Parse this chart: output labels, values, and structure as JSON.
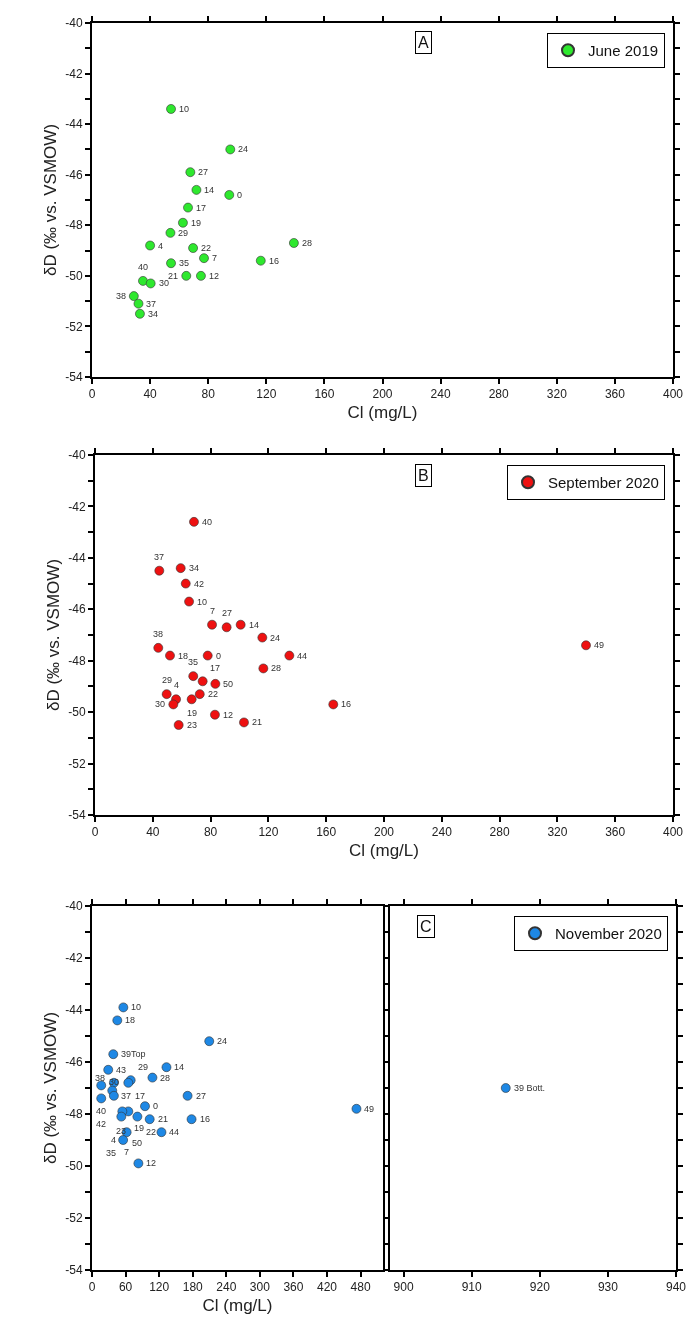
{
  "chart_data": [
    {
      "type": "scatter",
      "xlabel": "Cl (mg/L)",
      "ylabel": "δD (‰ vs. VSMOW)",
      "xlim": [
        0,
        400
      ],
      "ylim": [
        -54,
        -40
      ],
      "xticks": [
        0,
        40,
        80,
        120,
        160,
        200,
        240,
        280,
        320,
        360,
        400
      ],
      "yticks": [
        -40,
        {
          "value": -41,
          "label": null
        },
        -42,
        {
          "value": -43,
          "label": null
        },
        -44,
        {
          "value": -45,
          "label": null
        },
        -46,
        {
          "value": -47,
          "label": null
        },
        -48,
        {
          "value": -49,
          "label": null
        },
        -50,
        {
          "value": -51,
          "label": null
        },
        -52,
        {
          "value": -53,
          "label": null
        },
        -54
      ],
      "legend": "top right",
      "marker": "circle",
      "series": [
        {
          "name": "June 2019",
          "color": "#2ee82e",
          "x": [
            54.4,
            95.2,
            67.7,
            71.9,
            94.5,
            66.1,
            62.6,
            54.0,
            40.0,
            69.6,
            139.0,
            77.1,
            116.2,
            54.4,
            64.9,
            75.0,
            35.1,
            40.4,
            28.8,
            32.0,
            33.0
          ],
          "values": [
            -43.4,
            -45.0,
            -45.9,
            -46.6,
            -46.8,
            -47.3,
            -47.9,
            -48.3,
            -48.8,
            -48.9,
            -48.7,
            -49.3,
            -49.4,
            -49.5,
            -50.0,
            -50.0,
            -50.2,
            -50.3,
            -50.8,
            -51.1,
            -51.5
          ]
        }
      ],
      "annotations": [
        "A",
        {
          "text": "10",
          "x": 54.4,
          "y": -43.4
        },
        {
          "text": "24",
          "x": 95.2,
          "y": -45.0
        },
        {
          "text": "27",
          "x": 67.7,
          "y": -45.9
        },
        {
          "text": "14",
          "x": 71.9,
          "y": -46.6
        },
        {
          "text": "0",
          "x": 94.5,
          "y": -46.8
        },
        {
          "text": "17",
          "x": 66.1,
          "y": -47.3
        },
        {
          "text": "19",
          "x": 62.6,
          "y": -47.9
        },
        {
          "text": "29",
          "x": 54.0,
          "y": -48.3
        },
        {
          "text": "4",
          "x": 40.0,
          "y": -48.8
        },
        {
          "text": "22",
          "x": 69.6,
          "y": -48.9
        },
        {
          "text": "28",
          "x": 139.0,
          "y": -48.7
        },
        {
          "text": "7",
          "x": 77.1,
          "y": -49.3
        },
        {
          "text": "16",
          "x": 116.2,
          "y": -49.4
        },
        {
          "text": "35",
          "x": 54.4,
          "y": -49.5
        },
        {
          "text": "21",
          "x": 64.9,
          "y": -50.0
        },
        {
          "text": "12",
          "x": 75.0,
          "y": -50.0
        },
        {
          "text": "40",
          "x": 35.1,
          "y": -50.2
        },
        {
          "text": "30",
          "x": 40.4,
          "y": -50.3
        },
        {
          "text": "38",
          "x": 28.8,
          "y": -50.8
        },
        {
          "text": "37",
          "x": 32.0,
          "y": -51.1
        },
        {
          "text": "34",
          "x": 33.0,
          "y": -51.5
        }
      ]
    },
    {
      "type": "scatter",
      "xlabel": "Cl (mg/L)",
      "ylabel": "δD (‰ vs. VSMOW)",
      "xlim": [
        0,
        400
      ],
      "ylim": [
        -54,
        -40
      ],
      "xticks": [
        0,
        40,
        80,
        120,
        160,
        200,
        240,
        280,
        320,
        360,
        400
      ],
      "yticks": [
        -40,
        {
          "value": -41,
          "label": null
        },
        -42,
        {
          "value": -43,
          "label": null
        },
        -44,
        {
          "value": -45,
          "label": null
        },
        -46,
        {
          "value": -47,
          "label": null
        },
        -48,
        {
          "value": -49,
          "label": null
        },
        -50,
        {
          "value": -51,
          "label": null
        },
        -52,
        {
          "value": -53,
          "label": null
        },
        -54
      ],
      "legend": "top right",
      "marker": "circle",
      "series": [
        {
          "name": "September 2020",
          "color": "#ee1111",
          "x": [
            68.5,
            44.5,
            59.3,
            62.8,
            65.1,
            81.0,
            91.1,
            100.8,
            115.8,
            43.8,
            51.9,
            78.0,
            134.5,
            116.5,
            68.0,
            74.5,
            83.3,
            49.6,
            56.1,
            72.5,
            66.9,
            54.2,
            83.0,
            103.1,
            57.9,
            164.9,
            339.8
          ],
          "values": [
            -42.6,
            -44.5,
            -44.4,
            -45.0,
            -45.7,
            -46.6,
            -46.7,
            -46.6,
            -47.1,
            -47.5,
            -47.8,
            -47.8,
            -47.8,
            -48.3,
            -48.6,
            -48.8,
            -48.9,
            -49.3,
            -49.5,
            -49.3,
            -49.5,
            -49.7,
            -50.1,
            -50.4,
            -50.5,
            -49.7,
            -47.4
          ]
        }
      ],
      "annotations": [
        "B",
        {
          "text": "40",
          "x": 68.5,
          "y": -42.6
        },
        {
          "text": "37",
          "x": 44.5,
          "y": -44.5
        },
        {
          "text": "34",
          "x": 59.3,
          "y": -44.4
        },
        {
          "text": "42",
          "x": 62.8,
          "y": -45.0
        },
        {
          "text": "10",
          "x": 65.1,
          "y": -45.7
        },
        {
          "text": "7",
          "x": 81.0,
          "y": -46.6
        },
        {
          "text": "27",
          "x": 91.1,
          "y": -46.7
        },
        {
          "text": "14",
          "x": 100.8,
          "y": -46.6
        },
        {
          "text": "24",
          "x": 115.8,
          "y": -47.1
        },
        {
          "text": "38",
          "x": 43.8,
          "y": -47.5
        },
        {
          "text": "18",
          "x": 51.9,
          "y": -47.8
        },
        {
          "text": "0",
          "x": 78.0,
          "y": -47.8
        },
        {
          "text": "44",
          "x": 134.5,
          "y": -47.8
        },
        {
          "text": "28",
          "x": 116.5,
          "y": -48.3
        },
        {
          "text": "35",
          "x": 68.0,
          "y": -48.6
        },
        {
          "text": "17",
          "x": 74.5,
          "y": -48.8
        },
        {
          "text": "50",
          "x": 83.3,
          "y": -48.9
        },
        {
          "text": "29",
          "x": 49.6,
          "y": -49.3
        },
        {
          "text": "4",
          "x": 56.1,
          "y": -49.5
        },
        {
          "text": "22",
          "x": 72.5,
          "y": -49.3
        },
        {
          "text": "19",
          "x": 66.9,
          "y": -49.5
        },
        {
          "text": "30",
          "x": 54.2,
          "y": -49.7
        },
        {
          "text": "12",
          "x": 83.0,
          "y": -50.1
        },
        {
          "text": "21",
          "x": 103.1,
          "y": -50.4
        },
        {
          "text": "23",
          "x": 57.9,
          "y": -50.5
        },
        {
          "text": "16",
          "x": 164.9,
          "y": -49.7
        },
        {
          "text": "49",
          "x": 339.8,
          "y": -47.4
        }
      ]
    },
    {
      "type": "scatter",
      "xlabel": "Cl (mg/L)",
      "ylabel": "δD (‰ vs. VSMOW)",
      "xlim": [
        0,
        520
      ],
      "ylim": [
        -54,
        -40
      ],
      "xticks": [
        0,
        60,
        120,
        180,
        240,
        300,
        360,
        420,
        480
      ],
      "yticks": [
        -40,
        {
          "value": -41,
          "label": null
        },
        -42,
        {
          "value": -43,
          "label": null
        },
        -44,
        {
          "value": -45,
          "label": null
        },
        -46,
        {
          "value": -47,
          "label": null
        },
        -48,
        {
          "value": -49,
          "label": null
        },
        -50,
        {
          "value": -51,
          "label": null
        },
        -52,
        {
          "value": -53,
          "label": null
        },
        -54
      ],
      "marker": "circle",
      "series": [
        {
          "color": "#1e88e5",
          "x": [
            56.0,
            45.2,
            209.5,
            38.0,
            29.0,
            133.1,
            108.0,
            69.1,
            16.5,
            39.1,
            64.9,
            36.2,
            170.8,
            16.5,
            39.1,
            64.9,
            54.2,
            94.7,
            52.4,
            81.1,
            103.1,
            177.9,
            124.1,
            61.9,
            58.0,
            55.6,
            82.9,
            472.6
          ],
          "values": [
            -43.9,
            -44.4,
            -45.2,
            -45.7,
            -46.3,
            -46.2,
            -46.6,
            -46.7,
            -46.9,
            -46.8,
            -46.8,
            -47.1,
            -47.3,
            -47.4,
            -47.3,
            -47.9,
            -47.9,
            -47.7,
            -48.1,
            -48.1,
            -48.2,
            -48.2,
            -48.7,
            -48.7,
            null,
            -49.0,
            -49.9,
            -47.8
          ]
        }
      ],
      "annotations": [
        {
          "text": "10",
          "x": 56.0,
          "y": -43.9
        },
        {
          "text": "18",
          "x": 45.2,
          "y": -44.4
        },
        {
          "text": "24",
          "x": 209.5,
          "y": -45.2
        },
        {
          "text": "39Top",
          "x": 38.0,
          "y": -45.7
        },
        {
          "text": "43",
          "x": 29.0,
          "y": -46.3
        },
        {
          "text": "14",
          "x": 133.1,
          "y": -46.2
        },
        {
          "text": "28",
          "x": 108.0,
          "y": -46.6
        },
        {
          "text": "29",
          "x": 69.1,
          "y": -46.7
        },
        {
          "text": "40",
          "x": 16.5,
          "y": -46.9
        },
        {
          "text": "37",
          "x": 39.1,
          "y": -46.8
        },
        {
          "text": "17",
          "x": 64.9,
          "y": -46.8
        },
        {
          "text": "38",
          "x": 36.2,
          "y": -47.1
        },
        {
          "text": "27",
          "x": 170.8,
          "y": -47.3
        },
        {
          "text": "42",
          "x": 16.5,
          "y": -47.4
        },
        {
          "text": "30",
          "x": 39.1,
          "y": -47.3
        },
        {
          "text": "22",
          "x": 64.9,
          "y": -47.9
        },
        {
          "text": "19",
          "x": 54.2,
          "y": -47.9
        },
        {
          "text": "0",
          "x": 94.7,
          "y": -47.7
        },
        {
          "text": "23",
          "x": 52.4,
          "y": -48.1
        },
        {
          "text": "50",
          "x": 81.1,
          "y": -48.1
        },
        {
          "text": "21",
          "x": 103.1,
          "y": -48.2
        },
        {
          "text": "16",
          "x": 177.9,
          "y": -48.2
        },
        {
          "text": "44",
          "x": 124.1,
          "y": -48.7
        },
        {
          "text": "7",
          "x": 61.9,
          "y": -48.7
        },
        {
          "text": "4",
          "x": 58.0,
          "y": -49.0
        },
        {
          "text": "35",
          "x": 55.6,
          "y": -49.0
        },
        {
          "text": "12",
          "x": 82.9,
          "y": -49.9
        },
        {
          "text": "49",
          "x": 472.6,
          "y": -47.8
        }
      ]
    },
    {
      "type": "scatter",
      "xlim": [
        898,
        940
      ],
      "ylim": [
        -54,
        -40
      ],
      "xticks": [
        900,
        910,
        920,
        930,
        940
      ],
      "yticks": [
        -40,
        {
          "value": -41,
          "label": null
        },
        -42,
        {
          "value": -43,
          "label": null
        },
        -44,
        {
          "value": -45,
          "label": null
        },
        -46,
        {
          "value": -47,
          "label": null
        },
        -48,
        {
          "value": -49,
          "label": null
        },
        -50,
        {
          "value": -51,
          "label": null
        },
        -52,
        {
          "value": -53,
          "label": null
        },
        -54
      ],
      "tick_labels": "x",
      "legend": "top right",
      "marker": "circle",
      "series": [
        {
          "name": "November 2020",
          "color": "#1e88e5",
          "x": [
            915.0
          ],
          "values": [
            -47.0
          ]
        }
      ],
      "annotations": [
        "C",
        {
          "text": "39 Bott.",
          "x": 915.0,
          "y": -47.0
        }
      ]
    }
  ]
}
